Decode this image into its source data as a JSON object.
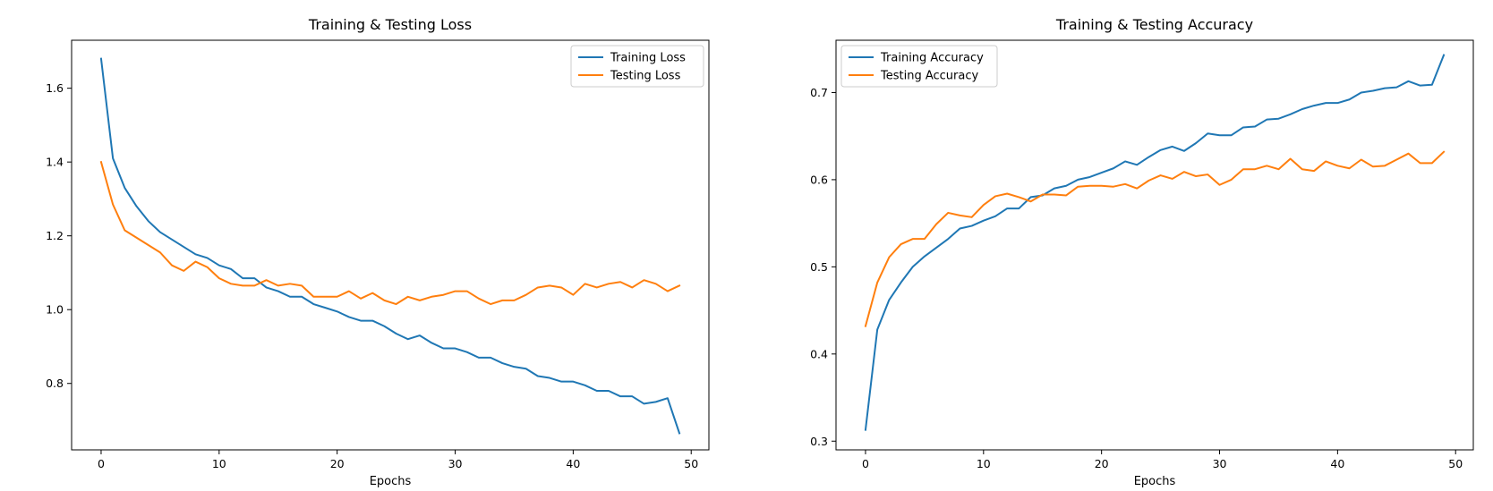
{
  "chart_data": [
    {
      "type": "line",
      "title": "Training & Testing Loss",
      "xlabel": "Epochs",
      "ylabel": "",
      "xlim": [
        -2.5,
        51.5
      ],
      "ylim": [
        0.62,
        1.73
      ],
      "xticks": [
        0,
        10,
        20,
        30,
        40,
        50
      ],
      "yticks": [
        0.8,
        1.0,
        1.2,
        1.4,
        1.6
      ],
      "ytick_labels": [
        "0.8",
        "1.0",
        "1.2",
        "1.4",
        "1.6"
      ],
      "legend_position": "upper-right",
      "x": [
        0,
        1,
        2,
        3,
        4,
        5,
        6,
        7,
        8,
        9,
        10,
        11,
        12,
        13,
        14,
        15,
        16,
        17,
        18,
        19,
        20,
        21,
        22,
        23,
        24,
        25,
        26,
        27,
        28,
        29,
        30,
        31,
        32,
        33,
        34,
        35,
        36,
        37,
        38,
        39,
        40,
        41,
        42,
        43,
        44,
        45,
        46,
        47,
        48,
        49
      ],
      "series": [
        {
          "name": "Training Loss",
          "color": "#1f77b4",
          "values": [
            1.68,
            1.41,
            1.33,
            1.28,
            1.24,
            1.21,
            1.19,
            1.17,
            1.15,
            1.14,
            1.12,
            1.11,
            1.085,
            1.085,
            1.06,
            1.05,
            1.035,
            1.035,
            1.015,
            1.005,
            0.995,
            0.98,
            0.97,
            0.97,
            0.955,
            0.935,
            0.92,
            0.93,
            0.91,
            0.895,
            0.895,
            0.885,
            0.87,
            0.87,
            0.855,
            0.845,
            0.84,
            0.82,
            0.815,
            0.805,
            0.805,
            0.795,
            0.78,
            0.78,
            0.765,
            0.765,
            0.745,
            0.75,
            0.76,
            0.665
          ]
        },
        {
          "name": "Testing Loss",
          "color": "#ff7f0e",
          "values": [
            1.4,
            1.285,
            1.215,
            1.195,
            1.175,
            1.155,
            1.12,
            1.105,
            1.13,
            1.115,
            1.085,
            1.07,
            1.065,
            1.065,
            1.08,
            1.065,
            1.07,
            1.065,
            1.035,
            1.035,
            1.035,
            1.05,
            1.03,
            1.045,
            1.025,
            1.015,
            1.035,
            1.025,
            1.035,
            1.04,
            1.05,
            1.05,
            1.03,
            1.015,
            1.025,
            1.025,
            1.04,
            1.06,
            1.065,
            1.06,
            1.04,
            1.07,
            1.06,
            1.07,
            1.075,
            1.06,
            1.08,
            1.07,
            1.05,
            1.065
          ]
        }
      ]
    },
    {
      "type": "line",
      "title": "Training & Testing Accuracy",
      "xlabel": "Epochs",
      "ylabel": "",
      "xlim": [
        -2.5,
        51.5
      ],
      "ylim": [
        0.29,
        0.76
      ],
      "xticks": [
        0,
        10,
        20,
        30,
        40,
        50
      ],
      "yticks": [
        0.3,
        0.4,
        0.5,
        0.6,
        0.7
      ],
      "ytick_labels": [
        "0.3",
        "0.4",
        "0.5",
        "0.6",
        "0.7"
      ],
      "legend_position": "upper-left",
      "x": [
        0,
        1,
        2,
        3,
        4,
        5,
        6,
        7,
        8,
        9,
        10,
        11,
        12,
        13,
        14,
        15,
        16,
        17,
        18,
        19,
        20,
        21,
        22,
        23,
        24,
        25,
        26,
        27,
        28,
        29,
        30,
        31,
        32,
        33,
        34,
        35,
        36,
        37,
        38,
        39,
        40,
        41,
        42,
        43,
        44,
        45,
        46,
        47,
        48,
        49
      ],
      "series": [
        {
          "name": "Training Accuracy",
          "color": "#1f77b4",
          "values": [
            0.313,
            0.428,
            0.462,
            0.482,
            0.5,
            0.512,
            0.522,
            0.532,
            0.544,
            0.547,
            0.553,
            0.558,
            0.567,
            0.567,
            0.58,
            0.582,
            0.59,
            0.593,
            0.6,
            0.603,
            0.608,
            0.613,
            0.621,
            0.617,
            0.626,
            0.634,
            0.638,
            0.633,
            0.642,
            0.653,
            0.651,
            0.651,
            0.66,
            0.661,
            0.669,
            0.67,
            0.675,
            0.681,
            0.685,
            0.688,
            0.688,
            0.692,
            0.7,
            0.702,
            0.705,
            0.706,
            0.713,
            0.708,
            0.709,
            0.743
          ]
        },
        {
          "name": "Testing Accuracy",
          "color": "#ff7f0e",
          "values": [
            0.432,
            0.482,
            0.511,
            0.526,
            0.532,
            0.532,
            0.549,
            0.562,
            0.559,
            0.557,
            0.571,
            0.581,
            0.584,
            0.58,
            0.575,
            0.583,
            0.583,
            0.582,
            0.592,
            0.593,
            0.593,
            0.592,
            0.595,
            0.59,
            0.599,
            0.605,
            0.601,
            0.609,
            0.604,
            0.606,
            0.594,
            0.6,
            0.612,
            0.612,
            0.616,
            0.612,
            0.624,
            0.612,
            0.61,
            0.621,
            0.616,
            0.613,
            0.623,
            0.615,
            0.616,
            0.623,
            0.63,
            0.619,
            0.619,
            0.632
          ]
        }
      ]
    }
  ]
}
